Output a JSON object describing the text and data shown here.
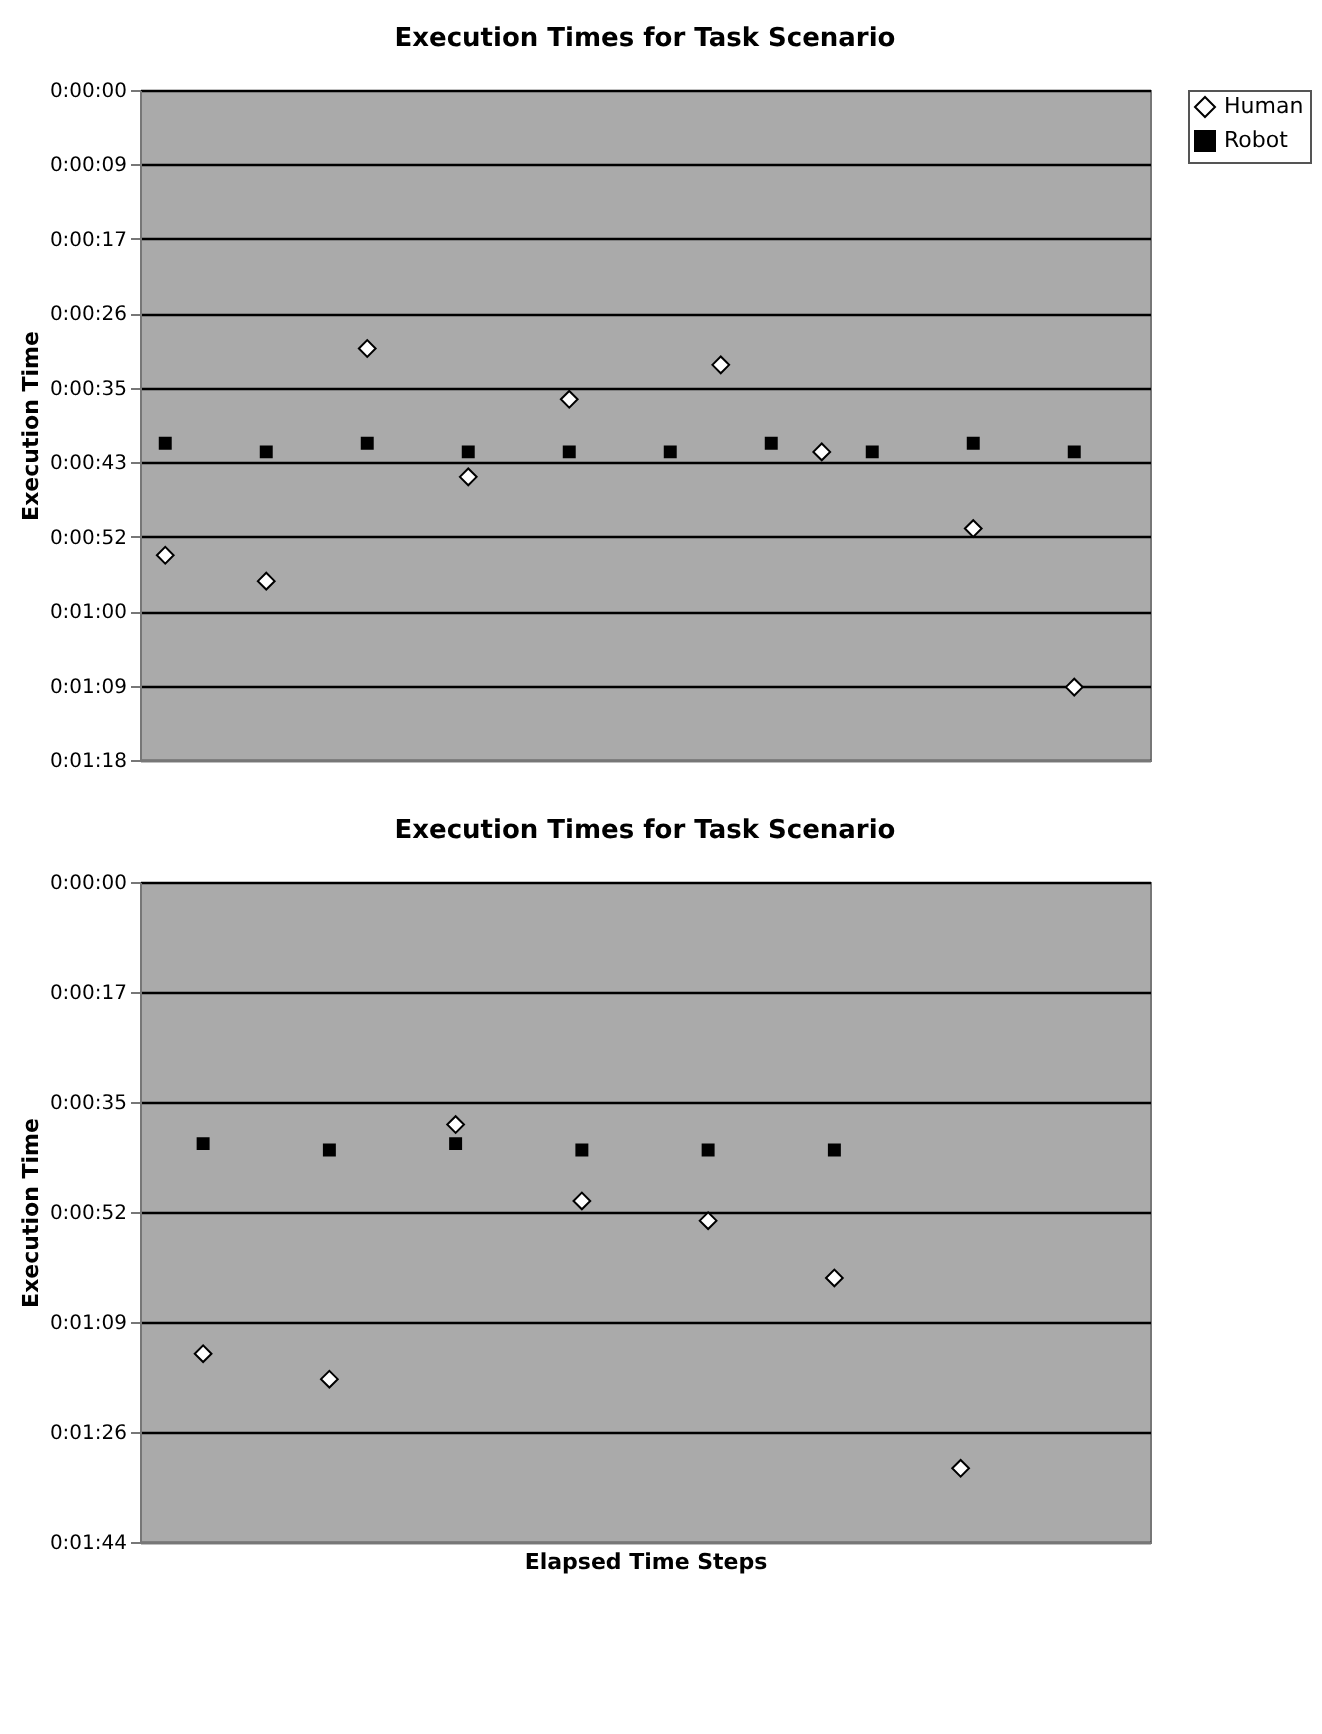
{
  "chart_data": [
    {
      "type": "scatter",
      "title": "Execution Times for Task Scenario",
      "ylabel": "Execution Time",
      "categories": [
        null,
        null,
        null,
        null,
        null,
        null,
        null,
        null,
        null,
        null,
        null,
        null,
        null,
        null,
        null,
        null,
        null,
        null,
        null,
        null
      ],
      "series": [
        {
          "name": "Human",
          "color": "#ffffff",
          "marker": "diamond",
          "values": [
            54.0,
            null,
            57.0,
            null,
            30.0,
            null,
            44.9,
            null,
            35.9,
            null,
            null,
            31.9,
            null,
            42.0,
            null,
            null,
            50.9,
            null,
            69.3,
            null
          ]
        },
        {
          "name": "Robot",
          "color": "#000000",
          "marker": "square",
          "values": [
            41.0,
            null,
            42.0,
            null,
            41.0,
            null,
            42.0,
            null,
            42.0,
            null,
            42.0,
            null,
            41.0,
            null,
            42.0,
            null,
            41.0,
            null,
            42.0,
            null
          ]
        }
      ],
      "ylim": [
        77.76,
        0
      ],
      "yticks": [
        {
          "value": 0,
          "label": "0:00:00"
        },
        {
          "value": 8.64,
          "label": "0:00:09"
        },
        {
          "value": 17.28,
          "label": "0:00:17"
        },
        {
          "value": 25.92,
          "label": "0:00:26"
        },
        {
          "value": 34.56,
          "label": "0:00:35"
        },
        {
          "value": 43.2,
          "label": "0:00:43"
        },
        {
          "value": 51.84,
          "label": "0:00:52"
        },
        {
          "value": 60.48,
          "label": "0:01:00"
        },
        {
          "value": 69.12,
          "label": "0:01:09"
        },
        {
          "value": 77.76,
          "label": "0:01:18"
        }
      ],
      "grid": "y",
      "legend": "right",
      "tick_labels": "y"
    },
    {
      "type": "scatter",
      "title": "Execution Times for Task Scenario",
      "ylabel": "Execution Time",
      "xlabel": "Elapsed Time Steps",
      "categories": [
        null,
        null,
        null,
        null,
        null,
        null,
        null,
        null
      ],
      "series": [
        {
          "name": "Human",
          "color": "#ffffff",
          "marker": "diamond",
          "values": [
            74.1,
            78.1,
            38.1,
            50.1,
            53.2,
            62.2,
            92.1,
            null
          ]
        },
        {
          "name": "Robot",
          "color": "#000000",
          "marker": "square",
          "values": [
            41.1,
            42.1,
            41.1,
            42.1,
            42.1,
            42.1,
            null,
            null
          ]
        }
      ],
      "ylim": [
        103.68,
        0
      ],
      "yticks": [
        {
          "value": 0,
          "label": "0:00:00"
        },
        {
          "value": 17.28,
          "label": "0:00:17"
        },
        {
          "value": 34.56,
          "label": "0:00:35"
        },
        {
          "value": 51.84,
          "label": "0:00:52"
        },
        {
          "value": 69.12,
          "label": "0:01:09"
        },
        {
          "value": 86.4,
          "label": "0:01:26"
        },
        {
          "value": 103.68,
          "label": "0:01:44"
        }
      ],
      "grid": "y",
      "legend": "right",
      "tick_labels": "y"
    }
  ]
}
